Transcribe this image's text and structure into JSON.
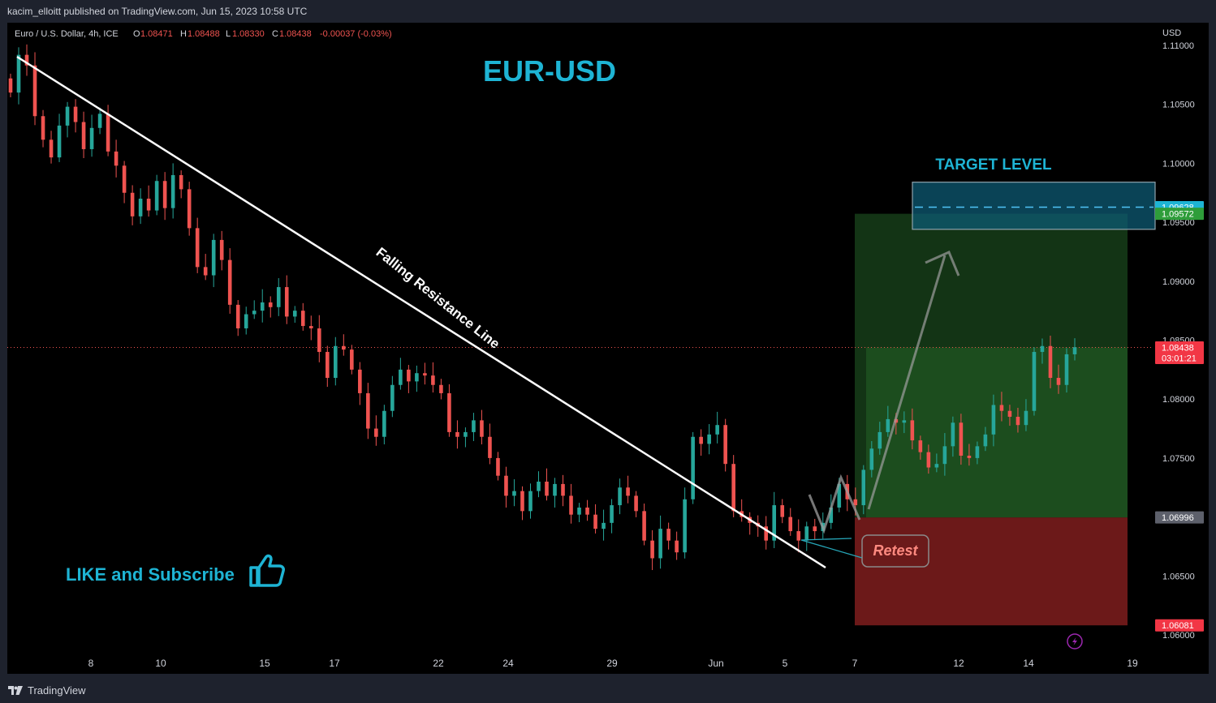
{
  "publisher_line": "kacim_elloitt published on TradingView.com, Jun 15, 2023 10:58 UTC",
  "symbol": {
    "name": "Euro / U.S. Dollar, 4h, ICE",
    "open_label": "O",
    "open": "1.08471",
    "high_label": "H",
    "high": "1.08488",
    "low_label": "L",
    "low": "1.08330",
    "close_label": "C",
    "close": "1.08438",
    "change": "-0.00037 (-0.03%)"
  },
  "currency": "USD",
  "footer_brand": "TradingView",
  "colors": {
    "up": "#26a69a",
    "down": "#ef5350",
    "title": "#1eb4d4",
    "profit_zone": "#2e7d32",
    "loss_zone": "#7f1d1d",
    "target_zone": "#0e5a73"
  },
  "chart_data": {
    "type": "candlestick",
    "title": "EUR-USD",
    "y_axis_label": "USD",
    "ylim": [
      1.0575,
      1.112
    ],
    "y_ticks": [
      "1.11000",
      "1.10500",
      "1.10000",
      "1.09500",
      "1.09000",
      "1.08500",
      "1.08000",
      "1.07500",
      "1.07000",
      "1.06500",
      "1.06000"
    ],
    "x_ticks": [
      "8",
      "10",
      "15",
      "17",
      "22",
      "24",
      "29",
      "Jun",
      "5",
      "7",
      "12",
      "14",
      "19"
    ],
    "price_labels": [
      {
        "value": 1.09628,
        "text": "1.09628",
        "color": "#1eb4d4"
      },
      {
        "value": 1.09572,
        "text": "1.09572",
        "color": "#2e9d3a"
      },
      {
        "value": 1.08438,
        "text": "1.08438",
        "sub": "03:01:21",
        "color": "#f23645"
      },
      {
        "value": 1.06996,
        "text": "1.06996",
        "color": "#5d606b"
      },
      {
        "value": 1.06081,
        "text": "1.06081",
        "color": "#f23645"
      }
    ],
    "current_price": 1.08438,
    "annotations": {
      "trendline_label": "Falling Resistance Line",
      "target_label": "TARGET LEVEL",
      "retest_label": "Retest",
      "cta": "LIKE and Subscribe"
    },
    "position": {
      "entry": 1.06996,
      "target": 1.09572,
      "stop": 1.06081
    },
    "target_zone": {
      "top": 1.0984,
      "bottom": 1.0944,
      "mid": 1.09628
    },
    "candles_close_path": [
      1.106,
      1.1092,
      1.1083,
      1.104,
      1.102,
      1.1005,
      1.1032,
      1.1048,
      1.1035,
      1.1012,
      1.103,
      1.1042,
      1.101,
      1.0998,
      1.0975,
      1.0955,
      1.097,
      1.096,
      1.0985,
      1.0962,
      1.099,
      1.0978,
      1.0945,
      1.0912,
      1.0905,
      1.0935,
      1.0918,
      1.088,
      1.086,
      1.0872,
      1.0875,
      1.0882,
      1.0878,
      1.0895,
      1.087,
      1.0875,
      1.0862,
      1.086,
      1.084,
      1.0818,
      1.0845,
      1.0842,
      1.0825,
      1.0805,
      1.0775,
      1.0768,
      1.079,
      1.0812,
      1.0825,
      1.0815,
      1.0822,
      1.082,
      1.0812,
      1.0805,
      1.0772,
      1.0768,
      1.0772,
      1.0782,
      1.0768,
      1.075,
      1.0735,
      1.0718,
      1.0722,
      1.0705,
      1.0722,
      1.073,
      1.0718,
      1.0728,
      1.0718,
      1.0702,
      1.0708,
      1.0702,
      1.069,
      1.0695,
      1.071,
      1.0725,
      1.0718,
      1.0705,
      1.068,
      1.0665,
      1.069,
      1.068,
      1.067,
      1.0715,
      1.0768,
      1.0762,
      1.077,
      1.0778,
      1.0745,
      1.0705,
      1.07,
      1.0695,
      1.0692,
      1.068,
      1.071,
      1.07,
      1.0688,
      1.068,
      1.0692,
      1.0688,
      1.0695,
      1.0708,
      1.0728,
      1.0715,
      1.071,
      1.074,
      1.0758,
      1.0772,
      1.0783,
      1.078,
      1.0782,
      1.0765,
      1.0755,
      1.0742,
      1.0745,
      1.076,
      1.078,
      1.0752,
      1.075,
      1.076,
      1.077,
      1.0795,
      1.079,
      1.0785,
      1.0778,
      1.079,
      1.084,
      1.0845,
      1.0818,
      1.0812,
      1.0838,
      1.0844
    ]
  }
}
